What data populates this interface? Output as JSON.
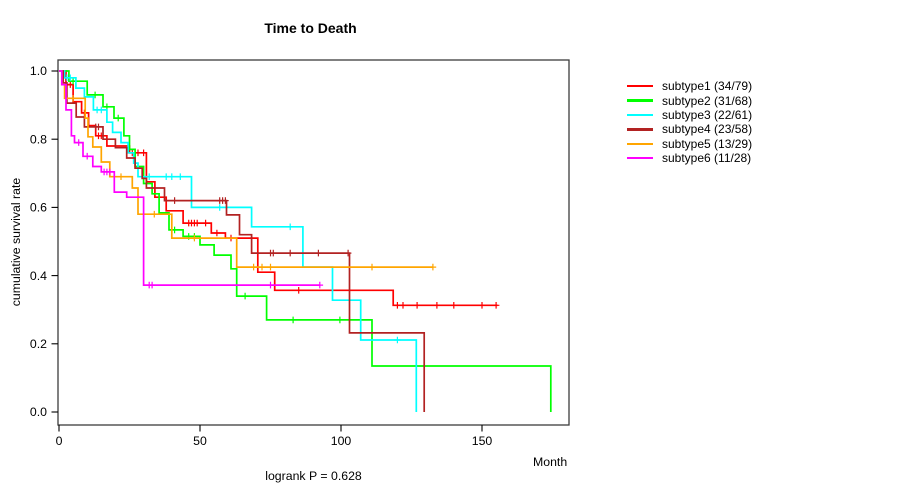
{
  "chart_data": {
    "type": "line",
    "variant": "kaplan-meier-step-plot",
    "title": "Time to Death",
    "xlabel": "Month",
    "ylabel": "cumulative survival rate",
    "footer": "logrank P = 0.628",
    "grid": false,
    "legend_position": "right-outside",
    "xlim": [
      0,
      181
    ],
    "ylim": [
      0,
      1
    ],
    "xticks": [
      {
        "value": 0,
        "label": "0"
      },
      {
        "value": 50,
        "label": "50"
      },
      {
        "value": 100,
        "label": "100"
      },
      {
        "value": 150,
        "label": "150"
      }
    ],
    "yticks": [
      {
        "value": 0,
        "label": "0.0"
      },
      {
        "value": 0.2,
        "label": "0.2"
      },
      {
        "value": 0.4,
        "label": "0.4"
      },
      {
        "value": 0.6,
        "label": "0.6"
      },
      {
        "value": 0.8,
        "label": "0.8"
      },
      {
        "value": 1,
        "label": "1.0"
      }
    ],
    "series": [
      {
        "name": "subtype1 (34/79)",
        "color": "#FF0000",
        "steps": [
          [
            0,
            1
          ],
          [
            2.5,
            0.96
          ],
          [
            5,
            0.91
          ],
          [
            8,
            0.877
          ],
          [
            10.5,
            0.84
          ],
          [
            13,
            0.81
          ],
          [
            17,
            0.78
          ],
          [
            25,
            0.76
          ],
          [
            31,
            0.675
          ],
          [
            34,
            0.63
          ],
          [
            38,
            0.59
          ],
          [
            44,
            0.554
          ],
          [
            54,
            0.525
          ],
          [
            59,
            0.51
          ],
          [
            70.5,
            0.41
          ],
          [
            76.5,
            0.357
          ],
          [
            118.5,
            0.313
          ]
        ],
        "end": 155.5,
        "censors": [
          [
            4,
            0.96
          ],
          [
            9,
            0.877
          ],
          [
            14,
            0.81
          ],
          [
            15,
            0.81
          ],
          [
            26,
            0.76
          ],
          [
            28,
            0.76
          ],
          [
            30,
            0.76
          ],
          [
            46,
            0.554
          ],
          [
            47,
            0.554
          ],
          [
            48,
            0.554
          ],
          [
            49,
            0.554
          ],
          [
            52,
            0.554
          ],
          [
            56,
            0.525
          ],
          [
            61,
            0.51
          ],
          [
            85,
            0.357
          ],
          [
            120,
            0.313
          ],
          [
            122,
            0.313
          ],
          [
            127,
            0.313
          ],
          [
            134,
            0.313
          ],
          [
            140,
            0.313
          ],
          [
            150,
            0.313
          ],
          [
            155,
            0.313
          ]
        ]
      },
      {
        "name": "subtype2 (31/68)",
        "color": "#00FF00",
        "steps": [
          [
            0,
            1
          ],
          [
            3.5,
            0.97
          ],
          [
            10,
            0.93
          ],
          [
            15.6,
            0.895
          ],
          [
            19.5,
            0.862
          ],
          [
            23,
            0.81
          ],
          [
            25,
            0.77
          ],
          [
            27,
            0.72
          ],
          [
            30,
            0.67
          ],
          [
            33,
            0.64
          ],
          [
            35.5,
            0.584
          ],
          [
            39,
            0.534
          ],
          [
            44,
            0.515
          ],
          [
            50,
            0.49
          ],
          [
            55,
            0.46
          ],
          [
            61,
            0.42
          ],
          [
            63,
            0.34
          ],
          [
            73.6,
            0.27
          ],
          [
            111,
            0.135
          ],
          [
            174.4,
            0
          ]
        ],
        "end": 174.4,
        "censors": [
          [
            5,
            0.97
          ],
          [
            12.8,
            0.93
          ],
          [
            17,
            0.895
          ],
          [
            21,
            0.862
          ],
          [
            41,
            0.534
          ],
          [
            46,
            0.515
          ],
          [
            48,
            0.515
          ],
          [
            66,
            0.34
          ],
          [
            83,
            0.27
          ],
          [
            99.6,
            0.27
          ],
          [
            103,
            0.27
          ]
        ]
      },
      {
        "name": "subtype3 (22/61)",
        "color": "#00FFFF",
        "steps": [
          [
            0,
            1
          ],
          [
            2,
            0.98
          ],
          [
            6,
            0.95
          ],
          [
            9,
            0.924
          ],
          [
            12.2,
            0.886
          ],
          [
            17,
            0.85
          ],
          [
            19,
            0.82
          ],
          [
            22,
            0.79
          ],
          [
            24.5,
            0.76
          ],
          [
            26.5,
            0.73
          ],
          [
            28,
            0.69
          ],
          [
            47,
            0.6
          ],
          [
            68.3,
            0.543
          ],
          [
            86.5,
            0.425
          ],
          [
            97,
            0.328
          ],
          [
            107,
            0.211
          ],
          [
            126.7,
            0
          ]
        ],
        "end": 126.7,
        "censors": [
          [
            2.8,
            0.98
          ],
          [
            4,
            0.98
          ],
          [
            13.5,
            0.886
          ],
          [
            15,
            0.886
          ],
          [
            32,
            0.69
          ],
          [
            38,
            0.69
          ],
          [
            40,
            0.69
          ],
          [
            43,
            0.69
          ],
          [
            57,
            0.6
          ],
          [
            82,
            0.543
          ],
          [
            120,
            0.211
          ]
        ]
      },
      {
        "name": "subtype4 (23/58)",
        "color": "#B22222",
        "steps": [
          [
            0,
            1
          ],
          [
            1.5,
            0.965
          ],
          [
            2.8,
            0.906
          ],
          [
            6.1,
            0.865
          ],
          [
            9,
            0.836
          ],
          [
            15.6,
            0.8
          ],
          [
            20,
            0.775
          ],
          [
            24,
            0.745
          ],
          [
            27,
            0.715
          ],
          [
            29.5,
            0.685
          ],
          [
            31,
            0.657
          ],
          [
            37.4,
            0.62
          ],
          [
            59.4,
            0.578
          ],
          [
            64,
            0.52
          ],
          [
            68.3,
            0.466
          ],
          [
            103,
            0.232
          ],
          [
            129.5,
            0
          ]
        ],
        "end": 129.5,
        "censors": [
          [
            13,
            0.836
          ],
          [
            14,
            0.836
          ],
          [
            41,
            0.62
          ],
          [
            57,
            0.62
          ],
          [
            58,
            0.62
          ],
          [
            59,
            0.62
          ],
          [
            75,
            0.466
          ],
          [
            76,
            0.466
          ],
          [
            82,
            0.466
          ],
          [
            92,
            0.466
          ],
          [
            102.5,
            0.466
          ]
        ]
      },
      {
        "name": "subtype5 (13/29)",
        "color": "#FFA500",
        "steps": [
          [
            0,
            1
          ],
          [
            1,
            0.96
          ],
          [
            2,
            0.92
          ],
          [
            9.3,
            0.862
          ],
          [
            10.3,
            0.807
          ],
          [
            12,
            0.777
          ],
          [
            15,
            0.733
          ],
          [
            18,
            0.69
          ],
          [
            26,
            0.657
          ],
          [
            28,
            0.58
          ],
          [
            40,
            0.51
          ],
          [
            63,
            0.425
          ]
        ],
        "end": 132.6,
        "censors": [
          [
            5,
            0.92
          ],
          [
            22,
            0.69
          ],
          [
            33.8,
            0.58
          ],
          [
            48,
            0.51
          ],
          [
            69,
            0.425
          ],
          [
            72,
            0.425
          ],
          [
            75,
            0.425
          ],
          [
            111,
            0.425
          ],
          [
            132.6,
            0.425
          ]
        ]
      },
      {
        "name": "subtype6 (11/28)",
        "color": "#FF00FF",
        "steps": [
          [
            0,
            1
          ],
          [
            1,
            0.96
          ],
          [
            2.5,
            0.886
          ],
          [
            4.4,
            0.81
          ],
          [
            5.5,
            0.79
          ],
          [
            8.5,
            0.75
          ],
          [
            12,
            0.72
          ],
          [
            15,
            0.704
          ],
          [
            19.6,
            0.645
          ],
          [
            24,
            0.63
          ],
          [
            30,
            0.372
          ]
        ],
        "end": 92.5,
        "censors": [
          [
            7,
            0.79
          ],
          [
            10,
            0.75
          ],
          [
            16,
            0.704
          ],
          [
            17,
            0.704
          ],
          [
            18,
            0.704
          ],
          [
            32,
            0.372
          ],
          [
            33,
            0.372
          ],
          [
            75,
            0.372
          ],
          [
            92.5,
            0.372
          ]
        ]
      }
    ]
  }
}
